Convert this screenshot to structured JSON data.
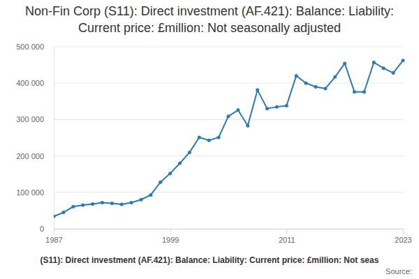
{
  "chart_data": {
    "type": "line",
    "title": "Non-Fin Corp (S11): Direct investment (AF.421): Balance: Liability: Current price: £million: Not seasonally adjusted",
    "caption": "(S11): Direct investment (AF.421): Balance: Liability: Current price: £million: Not seas",
    "source": "Source:",
    "x": [
      1987,
      1988,
      1989,
      1990,
      1991,
      1992,
      1993,
      1994,
      1995,
      1996,
      1997,
      1998,
      1999,
      2000,
      2001,
      2002,
      2003,
      2004,
      2005,
      2006,
      2007,
      2008,
      2009,
      2010,
      2011,
      2012,
      2013,
      2014,
      2015,
      2016,
      2017,
      2018,
      2019,
      2020,
      2021,
      2022,
      2023
    ],
    "values": [
      34000,
      45000,
      61000,
      65000,
      68000,
      72000,
      70000,
      67000,
      72000,
      80000,
      93000,
      128000,
      152000,
      180000,
      210000,
      251000,
      243000,
      251000,
      309000,
      326000,
      283000,
      381000,
      330000,
      335000,
      338000,
      420000,
      400000,
      390000,
      385000,
      417000,
      454000,
      376000,
      376000,
      457000,
      441000,
      428000,
      462000
    ],
    "color": "#2a7ab5",
    "marker": "circle",
    "xlim": [
      1987,
      2023
    ],
    "xticks": [
      1987,
      1999,
      2011,
      2023
    ],
    "ylim": [
      0,
      500000
    ],
    "yticks": [
      0,
      {
        "value": 100000,
        "label": "100 000"
      },
      {
        "value": 200000,
        "label": "200 000"
      },
      {
        "value": 300000,
        "label": "300 000"
      },
      {
        "value": 400000,
        "label": "400 000"
      },
      {
        "value": 500000,
        "label": "500 000"
      }
    ],
    "grid": true
  }
}
